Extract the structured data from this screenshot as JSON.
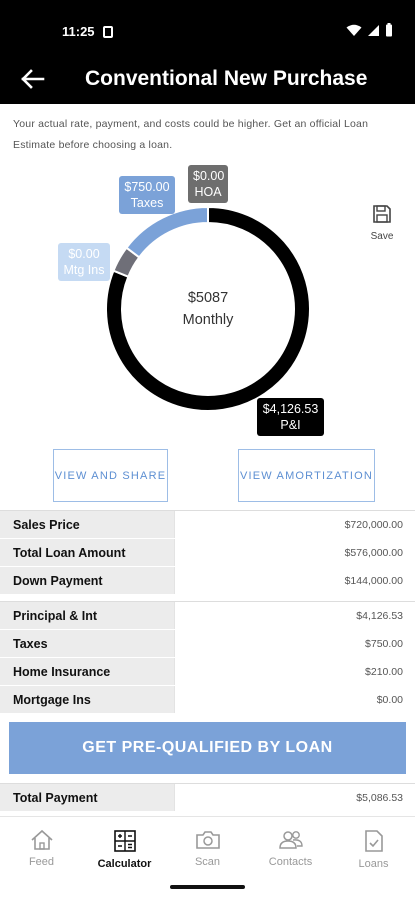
{
  "status": {
    "time": "11:25"
  },
  "header": {
    "title": "Conventional New Purchase"
  },
  "disclaimer": "Your actual rate, payment, and costs could be higher. Get an official Loan Estimate before choosing a loan.",
  "chart_data": {
    "type": "pie",
    "variant": "donut",
    "center_value": "$5087",
    "center_label": "Monthly",
    "slices": [
      {
        "name": "P&I",
        "label": "$4,126.53",
        "value": 4126.53,
        "color": "#000000"
      },
      {
        "name": "Mtg Ins",
        "label": "$0.00",
        "value": 0,
        "color": "#c5daf3"
      },
      {
        "name": "Taxes",
        "label": "$750.00",
        "value": 750,
        "color": "#7ba2d8"
      },
      {
        "name": "HOA",
        "label": "$0.00",
        "value": 0,
        "color": "#6e6e6e"
      }
    ],
    "insurance_slice": {
      "value": 210,
      "color": "#6f6f78"
    }
  },
  "save_label": "Save",
  "buttons": {
    "share": "VIEW AND SHARE",
    "amortization": "VIEW AMORTIZATION",
    "prequalify": "GET PRE-QUALIFIED BY LOAN"
  },
  "loan_table": [
    {
      "label": "Sales Price",
      "value": "$720,000.00"
    },
    {
      "label": "Total Loan Amount",
      "value": "$576,000.00"
    },
    {
      "label": "Down Payment",
      "value": "$144,000.00"
    }
  ],
  "payment_table": [
    {
      "label": "Principal & Int",
      "value": "$4,126.53"
    },
    {
      "label": "Taxes",
      "value": "$750.00"
    },
    {
      "label": "Home Insurance",
      "value": "$210.00"
    },
    {
      "label": "Mortgage Ins",
      "value": "$0.00"
    }
  ],
  "total": {
    "label": "Total Payment",
    "value": "$5,086.53"
  },
  "nav": [
    {
      "label": "Feed",
      "icon": "home-icon"
    },
    {
      "label": "Calculator",
      "icon": "calculator-icon",
      "active": true
    },
    {
      "label": "Scan",
      "icon": "camera-icon"
    },
    {
      "label": "Contacts",
      "icon": "contacts-icon"
    },
    {
      "label": "Loans",
      "icon": "document-check-icon"
    }
  ]
}
